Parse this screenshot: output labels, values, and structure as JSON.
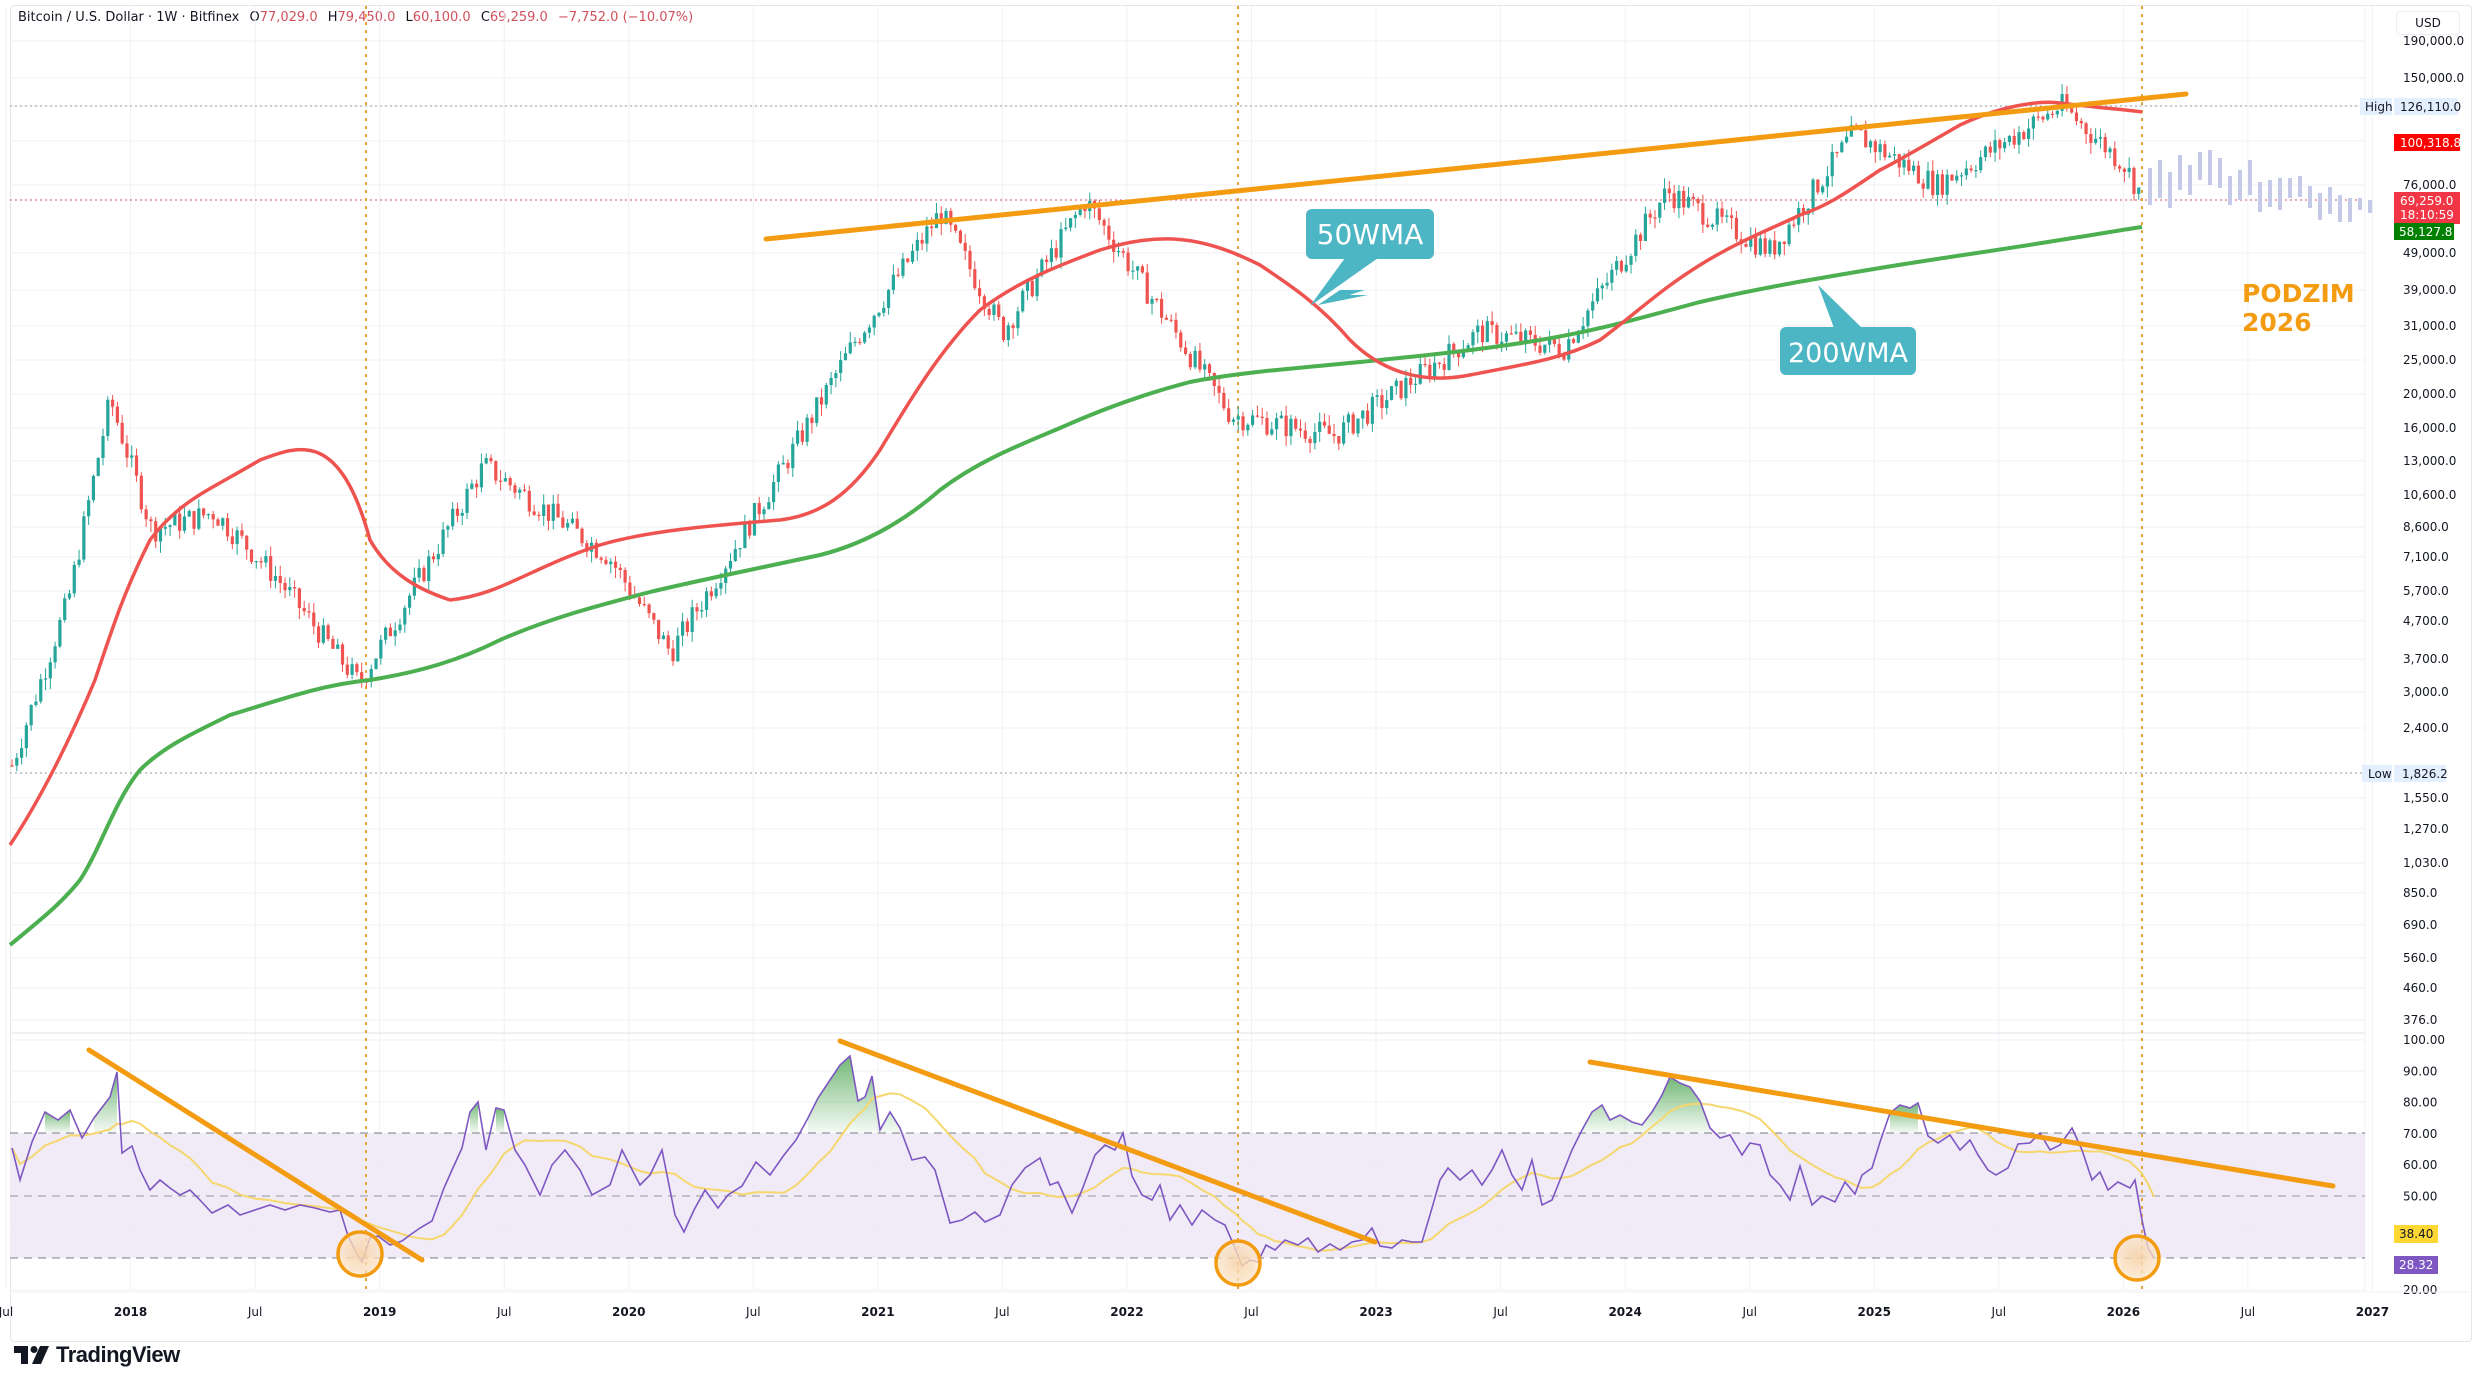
{
  "header": {
    "symbol": "Bitcoin / U.S. Dollar · 1W · Bitfinex",
    "open_label": "O",
    "open": "77,029.0",
    "high_label": "H",
    "high": "79,450.0",
    "low_label": "L",
    "low": "60,100.0",
    "close_label": "C",
    "close": "69,259.0",
    "change": "−7,752.0 (−10.07%)"
  },
  "currency_button": "USD",
  "price_axis": {
    "ticks": [
      "190,000.0",
      "150,000.0",
      "76,000.0",
      "49,000.0",
      "39,000.0",
      "31,000.0",
      "25,000.0",
      "20,000.0",
      "16,000.0",
      "13,000.0",
      "10,600.0",
      "8,600.0",
      "7,100.0",
      "5,700.0",
      "4,700.0",
      "3,700.0",
      "3,000.0",
      "2,400.0",
      "1,550.0",
      "1,270.0",
      "1,030.0",
      "850.0",
      "690.0",
      "560.0",
      "460.0",
      "376.0"
    ],
    "high_label": "High",
    "high_value": "126,110.0",
    "low_label": "Low",
    "low_value": "1,826.2",
    "ma50_value": "100,318.8",
    "last_price": "69,259.0",
    "countdown": "18:10:59",
    "ma200_value": "58,127.8"
  },
  "rsi_axis": {
    "ticks": [
      "100.00",
      "90.00",
      "80.00",
      "70.00",
      "60.00",
      "50.00",
      "20.00"
    ],
    "rsi_ma_value": "38.40",
    "rsi_value": "28.32"
  },
  "time_axis": {
    "labels": [
      "Jul",
      "2018",
      "Jul",
      "2019",
      "Jul",
      "2020",
      "Jul",
      "2021",
      "Jul",
      "2022",
      "Jul",
      "2023",
      "Jul",
      "2024",
      "Jul",
      "2025",
      "Jul",
      "2026",
      "Jul",
      "2027"
    ]
  },
  "annotations": {
    "ma50_callout": "50WMA",
    "ma200_callout": "200WMA",
    "forecast_text_line1": "PODZIM",
    "forecast_text_line2": "2026"
  },
  "branding": {
    "logo_text": "TradingView"
  },
  "colors": {
    "up_candle": "#26a69a",
    "down_candle": "#ef5350",
    "ma50": "#ef5350",
    "ma200": "#4caf50",
    "trendline": "#f39c12",
    "callout_bg": "#4db6c4",
    "rsi_line": "#7e57c2",
    "rsi_ma": "#f5d76e",
    "rsi_band": "#ede7f6",
    "ghost_bars": "#c5cae9",
    "high_low_label_bg": "#e3effd",
    "last_price_bg": "#f23645",
    "ma50_label_bg": "#ff0000",
    "ma200_label_bg": "#008000",
    "rsi_ma_label_bg": "#fdd835",
    "rsi_label_bg": "#7e57c2"
  },
  "chart_data": [
    {
      "type": "candlestick",
      "title": "Bitcoin / U.S. Dollar · 1W · Bitfinex",
      "xlabel": "",
      "ylabel": "USD",
      "y_scale": "log",
      "ylim": [
        376,
        190000
      ],
      "x_range": [
        "2017-07",
        "2027-03"
      ],
      "grid": true,
      "approx_price_path": [
        {
          "date": "2017-07",
          "price": 1900
        },
        {
          "date": "2017-10",
          "price": 5500
        },
        {
          "date": "2017-12",
          "price": 19500
        },
        {
          "date": "2018-02",
          "price": 8500
        },
        {
          "date": "2018-05",
          "price": 9500
        },
        {
          "date": "2018-08",
          "price": 6300
        },
        {
          "date": "2018-12",
          "price": 3200
        },
        {
          "date": "2019-06",
          "price": 12800
        },
        {
          "date": "2019-12",
          "price": 7200
        },
        {
          "date": "2020-03",
          "price": 3900
        },
        {
          "date": "2020-08",
          "price": 11500
        },
        {
          "date": "2020-12",
          "price": 29000
        },
        {
          "date": "2021-04",
          "price": 64000
        },
        {
          "date": "2021-07",
          "price": 30000
        },
        {
          "date": "2021-11",
          "price": 69000
        },
        {
          "date": "2022-06",
          "price": 17600
        },
        {
          "date": "2022-11",
          "price": 15500
        },
        {
          "date": "2023-06",
          "price": 30000
        },
        {
          "date": "2023-10",
          "price": 27000
        },
        {
          "date": "2024-03",
          "price": 73000
        },
        {
          "date": "2024-08",
          "price": 50000
        },
        {
          "date": "2024-12",
          "price": 106000
        },
        {
          "date": "2025-04",
          "price": 76000
        },
        {
          "date": "2025-10",
          "price": 126110
        },
        {
          "date": "2026-01",
          "price": 87000
        },
        {
          "date": "2026-02",
          "price": 69259
        }
      ],
      "series": [
        {
          "name": "50WMA",
          "last_value": 100318.8,
          "color": "#ef5350"
        },
        {
          "name": "200WMA",
          "last_value": 58127.8,
          "color": "#4caf50"
        }
      ],
      "markers": {
        "high": 126110.0,
        "low": 1826.2,
        "last": 69259.0
      },
      "annotations": [
        "50WMA",
        "200WMA",
        "PODZIM 2026",
        "Ascending resistance trendline 2021→2026",
        "Vertical dotted markers at Dec 2018, Jun 2022, Feb 2026"
      ]
    },
    {
      "type": "line",
      "title": "RSI",
      "ylim": [
        20,
        100
      ],
      "bands": {
        "upper": 70,
        "middle": 50,
        "lower": 30
      },
      "series": [
        {
          "name": "RSI",
          "last_value": 28.32,
          "color": "#7e57c2"
        },
        {
          "name": "RSI MA",
          "last_value": 38.4,
          "color": "#f5d76e"
        }
      ],
      "approx_peaks": [
        {
          "date": "2017-12",
          "value": 92
        },
        {
          "date": "2021-02",
          "value": 96
        },
        {
          "date": "2021-10",
          "value": 70
        },
        {
          "date": "2024-03",
          "value": 90
        },
        {
          "date": "2024-12",
          "value": 80
        },
        {
          "date": "2025-08",
          "value": 71
        }
      ],
      "approx_troughs": [
        {
          "date": "2018-12",
          "value": 30
        },
        {
          "date": "2022-06",
          "value": 27
        },
        {
          "date": "2026-02",
          "value": 28.32
        }
      ],
      "annotations": [
        "Three descending RSI trendlines",
        "Orange circles marking oversold touches at ~30"
      ]
    }
  ]
}
